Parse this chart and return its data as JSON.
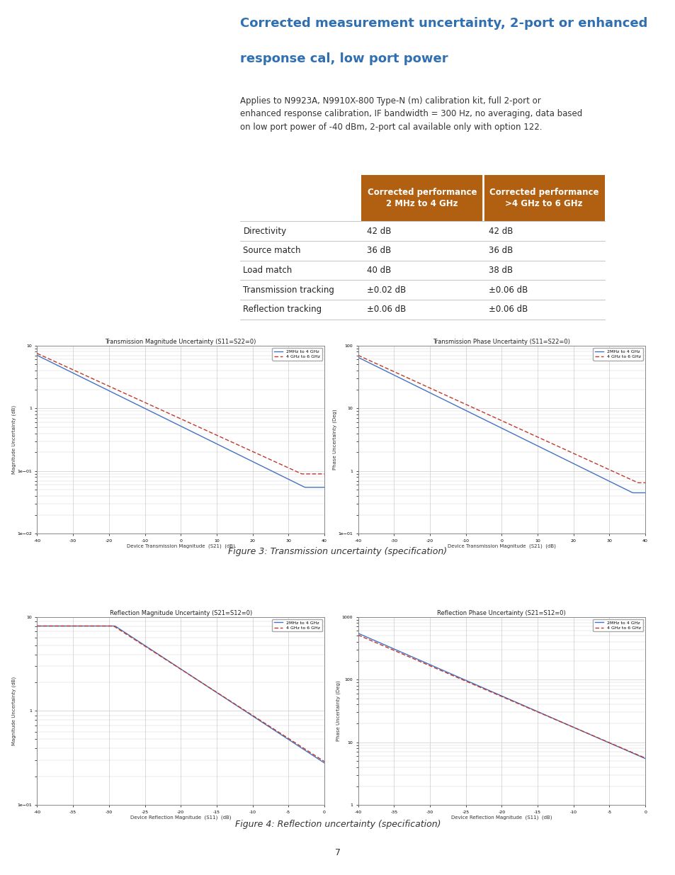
{
  "page_bg": "#ffffff",
  "title_line1": "Corrected measurement uncertainty, 2-port or enhanced",
  "title_line2": "response cal, low port power",
  "title_color": "#3070b0",
  "body_text": "Applies to N9923A, N9910X-800 Type-N (m) calibration kit, full 2-port or\nenhanced response calibration, IF bandwidth = 300 Hz, no averaging, data based\non low port power of -40 dBm, 2-port cal available only with option 122.",
  "table_header_bg": "#b06010",
  "table_header_color": "#ffffff",
  "table_header1": "Corrected performance\n2 MHz to 4 GHz",
  "table_header2": "Corrected performance\n>4 GHz to 6 GHz",
  "table_rows": [
    [
      "Directivity",
      "42 dB",
      "42 dB"
    ],
    [
      "Source match",
      "36 dB",
      "36 dB"
    ],
    [
      "Load match",
      "40 dB",
      "38 dB"
    ],
    [
      "Transmission tracking",
      "±0.02 dB",
      "±0.06 dB"
    ],
    [
      "Reflection tracking",
      "±0.06 dB",
      "±0.06 dB"
    ]
  ],
  "fig3_caption": "Figure 3: Transmission uncertainty (specification)",
  "fig4_caption": "Figure 4: Reflection uncertainty (specification)",
  "chart_border_color": "#888888",
  "grid_color": "#cccccc",
  "line1_color": "#4472c4",
  "line2_color": "#c0392b",
  "line1_label": "2MHz to 4 GHz",
  "line2_label": "4 GHz to 6 GHz",
  "trans_mag_title": "Transmission Magnitude Uncertainty (S11=S22=0)",
  "trans_mag_xlabel": "Device Transmission Magnitude  (S21)  (dB)",
  "trans_mag_ylabel": "Magnitude Uncertainty (dB)",
  "trans_mag_xlim": [
    -40,
    40
  ],
  "trans_mag_ylim_log": [
    0.01,
    10
  ],
  "trans_phase_title": "Transmission Phase Uncertainty (S11=S22=0)",
  "trans_phase_xlabel": "Device Transmission Magnitude  (S21)  (dB)",
  "trans_phase_ylabel": "Phase Uncertainty (Deg)",
  "trans_phase_xlim": [
    -40,
    40
  ],
  "trans_phase_ylim_log": [
    0.1,
    100
  ],
  "refl_mag_title": "Reflection Magnitude Uncertainty (S21=S12=0)",
  "refl_mag_xlabel": "Device Reflection Magnitude  (S11)  (dB)",
  "refl_mag_ylabel": "Magnitude Uncertainty (dB)",
  "refl_mag_xlim": [
    -40,
    0
  ],
  "refl_mag_ylim_log": [
    0.1,
    10
  ],
  "refl_phase_title": "Reflection Phase Uncertainty (S21=S12=0)",
  "refl_phase_xlabel": "Device Reflection Magnitude  (S11)  (dB)",
  "refl_phase_ylabel": "Phase Uncertainty (Deg)",
  "refl_phase_xlim": [
    -40,
    0
  ],
  "refl_phase_ylim_log": [
    1,
    1000
  ],
  "page_number": "7"
}
